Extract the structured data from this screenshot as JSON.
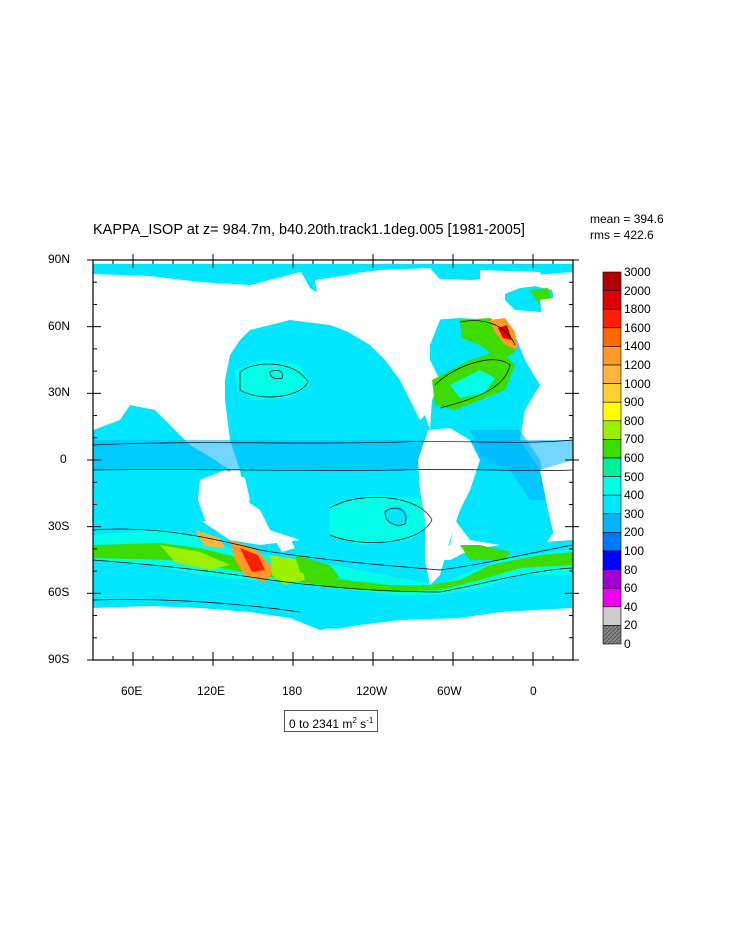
{
  "title": "KAPPA_ISOP at z= 984.7m, b40.20th.track1.1deg.005 [1981-2005]",
  "stats": {
    "mean": "mean = 394.6",
    "rms": "rms = 422.6"
  },
  "axes": {
    "lat_labels": [
      "90N",
      "60N",
      "30N",
      "0",
      "30S",
      "60S",
      "90S"
    ],
    "lon_labels": [
      "60E",
      "120E",
      "180",
      "120W",
      "60W",
      "0"
    ]
  },
  "colorbar": {
    "levels": [
      "3000",
      "2000",
      "1800",
      "1600",
      "1400",
      "1200",
      "1000",
      "900",
      "800",
      "700",
      "600",
      "500",
      "400",
      "300",
      "200",
      "100",
      "80",
      "60",
      "40",
      "20",
      "0"
    ],
    "colors": [
      "#b20000",
      "#e00000",
      "#ff1e00",
      "#ff6a00",
      "#ff9a28",
      "#ffb43c",
      "#ffd232",
      "#ffff00",
      "#9bf000",
      "#3cdc00",
      "#00f0a0",
      "#00ffe6",
      "#00e6ff",
      "#00b4ff",
      "#0078ff",
      "#0000ff",
      "#a000d2",
      "#f000f0",
      "#cccccc",
      "#7a7a7a"
    ]
  },
  "range": {
    "text": "0 to 2341 m",
    "exp1": "2",
    "mid": " s",
    "exp2": "-1"
  },
  "icons": {
    "colorbar-bottom": "hatched-grey-triangle"
  }
}
